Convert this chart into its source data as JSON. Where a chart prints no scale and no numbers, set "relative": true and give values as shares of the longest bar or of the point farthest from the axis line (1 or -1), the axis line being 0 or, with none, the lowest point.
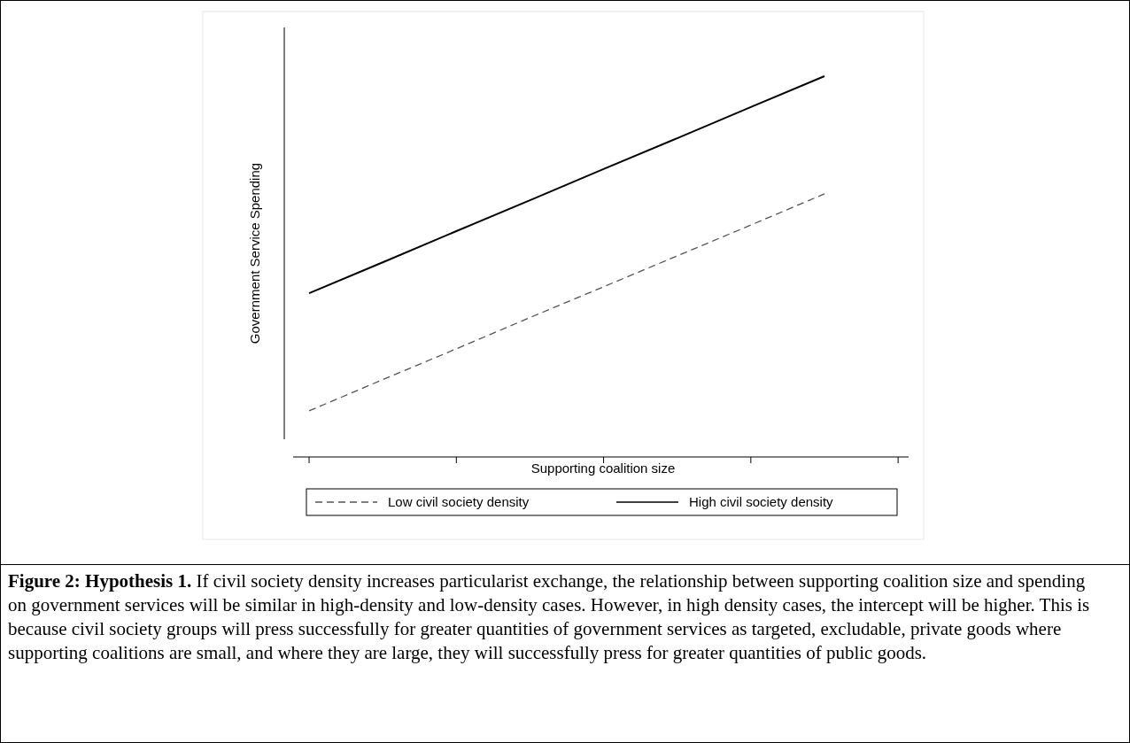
{
  "chart_data": {
    "type": "line",
    "relative": true,
    "xlabel": "Supporting coalition size",
    "ylabel": "Government Service Spending",
    "categories": [
      null,
      null,
      null,
      null,
      null,
      null,
      null,
      null
    ],
    "series": [
      {
        "name": "Low civil society density",
        "color": "#555555",
        "line_style": "dashed",
        "values": [
          0.121,
          0.203,
          0.284,
          0.366,
          0.447,
          0.528,
          0.609,
          0.691
        ]
      },
      {
        "name": "High civil society density",
        "color": "#000000",
        "line_style": "solid",
        "values": [
          0.43,
          0.511,
          0.593,
          0.674,
          0.756,
          0.837,
          0.919,
          1
        ]
      }
    ],
    "legend": "bottom",
    "marker": "none",
    "annotations": [
      "Figure 2: Hypothesis 1.",
      "If civil society density increases particularist exchange, the relationship between supporting coalition size and spending on government services will be similar in high-density and low-density cases.  However, in high density cases, the intercept will be higher.  This is because civil society groups will press successfully for greater quantities of government services as targeted, excludable, private goods where supporting coalitions are small, and where they are large, they will successfully press for greater quantities of public goods."
    ]
  }
}
